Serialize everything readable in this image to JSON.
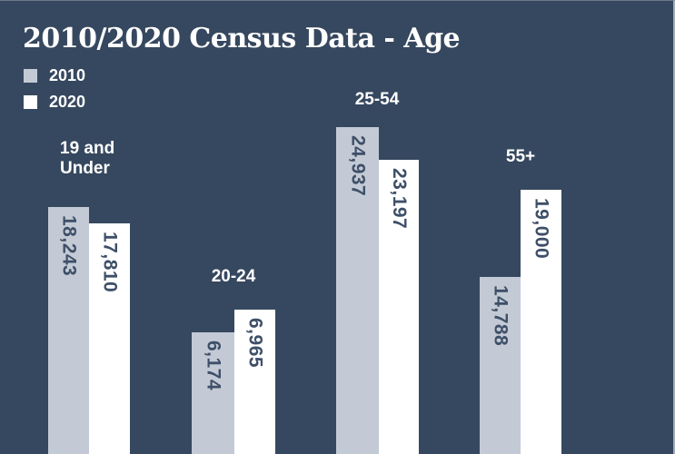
{
  "title": "2010/2020 Census Data - Age",
  "colors": {
    "background": "#36485f",
    "bar_2010": "#c3cad5",
    "bar_2020": "#ffffff",
    "value_text": "#3e4f68",
    "label_text": "#ffffff"
  },
  "chart_data": {
    "type": "bar",
    "title": "2010/2020 Census Data - Age",
    "categories": [
      "19 and Under",
      "20-24",
      "25-54",
      "55+"
    ],
    "series": [
      {
        "name": "2010",
        "color": "#c3cad5",
        "values": [
          18243,
          6174,
          24937,
          14788
        ],
        "labels": [
          "18,243",
          "6,174",
          "24,937",
          "14,788"
        ]
      },
      {
        "name": "2020",
        "color": "#ffffff",
        "values": [
          17810,
          6965,
          23197,
          19000
        ],
        "labels": [
          "17,810",
          "6,965",
          "23,197",
          "19,000"
        ]
      }
    ],
    "legend_position": "top-left",
    "grid": false,
    "axes_shown": false,
    "value_labels_rotated_90deg": true,
    "baseline": "bottom-edge"
  }
}
